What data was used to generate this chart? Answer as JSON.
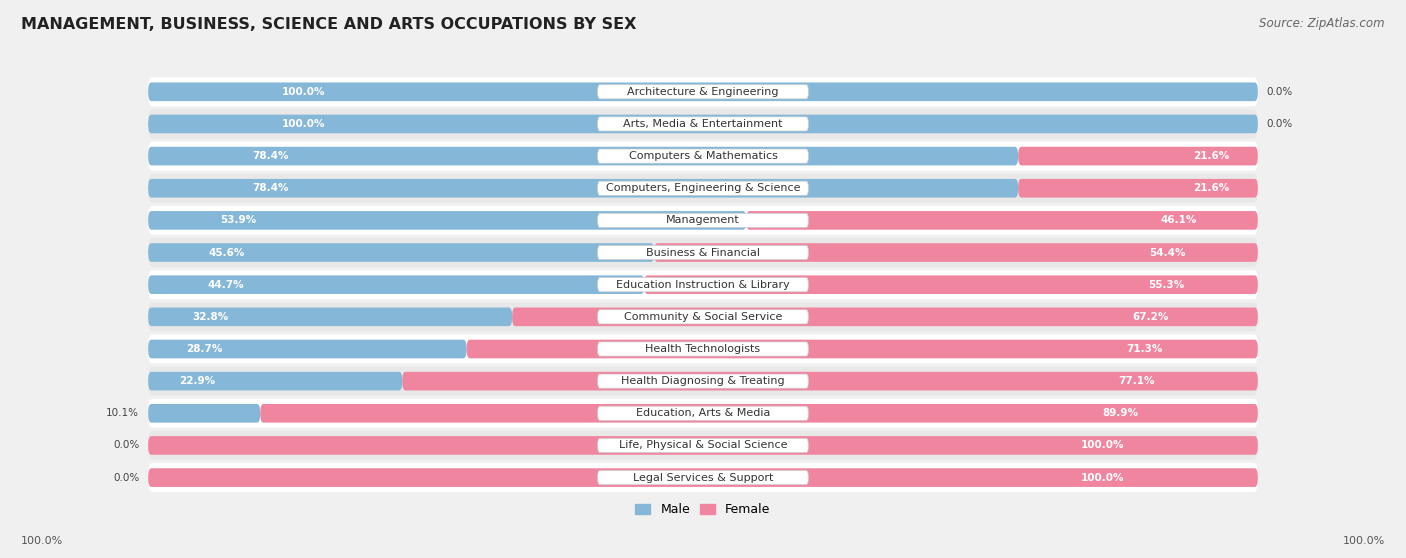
{
  "title": "MANAGEMENT, BUSINESS, SCIENCE AND ARTS OCCUPATIONS BY SEX",
  "source": "Source: ZipAtlas.com",
  "categories": [
    "Architecture & Engineering",
    "Arts, Media & Entertainment",
    "Computers & Mathematics",
    "Computers, Engineering & Science",
    "Management",
    "Business & Financial",
    "Education Instruction & Library",
    "Community & Social Service",
    "Health Technologists",
    "Health Diagnosing & Treating",
    "Education, Arts & Media",
    "Life, Physical & Social Science",
    "Legal Services & Support"
  ],
  "male": [
    100.0,
    100.0,
    78.4,
    78.4,
    53.9,
    45.6,
    44.7,
    32.8,
    28.7,
    22.9,
    10.1,
    0.0,
    0.0
  ],
  "female": [
    0.0,
    0.0,
    21.6,
    21.6,
    46.1,
    54.4,
    55.3,
    67.2,
    71.3,
    77.1,
    89.9,
    100.0,
    100.0
  ],
  "male_color": "#85b8d8",
  "female_color": "#f085a0",
  "bg_color": "#f0f0f0",
  "row_color_odd": "#ffffff",
  "row_color_even": "#e8e8e8",
  "title_fontsize": 11.5,
  "source_fontsize": 8.5,
  "cat_label_fontsize": 8,
  "pct_label_fontsize": 7.5
}
